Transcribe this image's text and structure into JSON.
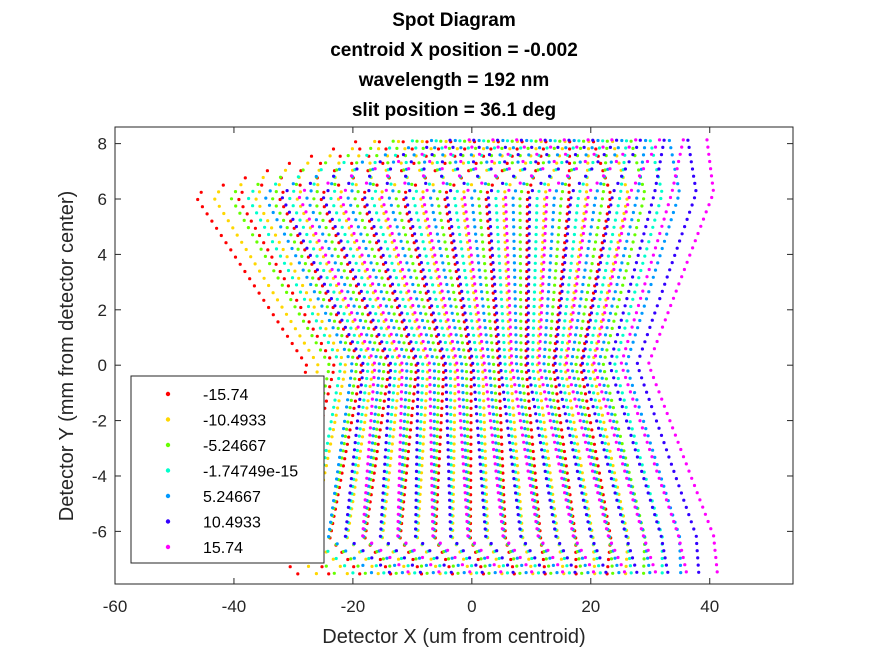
{
  "chart_data": {
    "type": "scatter",
    "title_lines": [
      "Spot Diagram",
      "centroid X position = -0.002",
      "wavelength = 192 nm",
      "slit position = 36.1 deg"
    ],
    "xlabel": "Detector X (um from centroid)",
    "ylabel": "Detector Y (mm from detector center)",
    "xlim": [
      -60,
      54
    ],
    "ylim": [
      -7.9,
      8.6
    ],
    "xticks": [
      -60,
      -40,
      -20,
      0,
      20,
      40
    ],
    "yticks": [
      -6,
      -4,
      -2,
      0,
      2,
      4,
      6,
      8
    ],
    "grid": false,
    "legend_position": "bottom-left",
    "series": [
      {
        "name": "-15.74",
        "color": "#ff0000",
        "x_shift": -9.5
      },
      {
        "name": "-10.4933",
        "color": "#ffd700",
        "x_shift": -6.3
      },
      {
        "name": "-5.24667",
        "color": "#66ff00",
        "x_shift": -3.2
      },
      {
        "name": "-1.74749e-15",
        "color": "#00ffcc",
        "x_shift": 0
      },
      {
        "name": "5.24667",
        "color": "#0099ff",
        "x_shift": 3.2
      },
      {
        "name": "10.4933",
        "color": "#3300ff",
        "x_shift": 6.3
      },
      {
        "name": "15.74",
        "color": "#ff00ff",
        "x_shift": 9.5
      }
    ],
    "spot_model": {
      "y_rows": 60,
      "points_per_row": 11,
      "envelope": [
        {
          "y": 8.1,
          "x_min": -10,
          "x_max": 30
        },
        {
          "y": 6.2,
          "x_min": -38,
          "x_max": 32
        },
        {
          "y": 0.0,
          "x_min": -22,
          "x_max": 24
        },
        {
          "y": -6.2,
          "x_min": -27,
          "x_max": 32
        },
        {
          "y": -7.5,
          "x_min": -20,
          "x_max": 32
        }
      ]
    }
  }
}
